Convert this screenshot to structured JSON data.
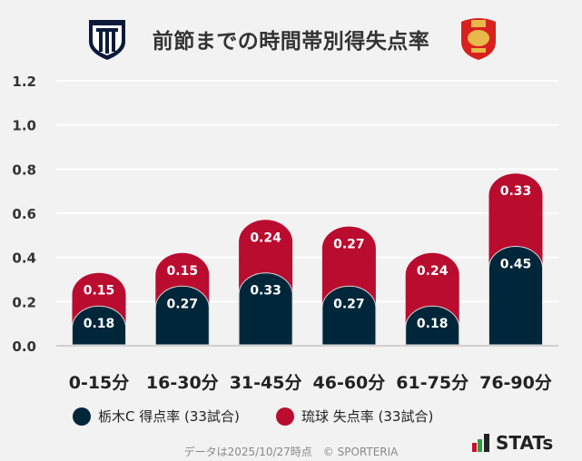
{
  "title": "前節までの時間帯別得失点率",
  "chart_data": {
    "type": "bar",
    "stacked": true,
    "title": "前節までの時間帯別得失点率",
    "categories": [
      "0-15分",
      "16-30分",
      "31-45分",
      "46-60分",
      "61-75分",
      "76-90分"
    ],
    "series": [
      {
        "name": "栃木C 得点率 (33試合)",
        "color": "#00263a",
        "values": [
          0.18,
          0.27,
          0.33,
          0.27,
          0.18,
          0.45
        ]
      },
      {
        "name": "琉球 失点率 (33試合)",
        "color": "#b90c2f",
        "values": [
          0.15,
          0.15,
          0.24,
          0.27,
          0.24,
          0.33
        ]
      }
    ],
    "yticks": [
      "0.0",
      "0.2",
      "0.4",
      "0.6",
      "0.8",
      "1.0",
      "1.2"
    ],
    "ylim": [
      0,
      1.2
    ],
    "grid": true,
    "legend_position": "bottom"
  },
  "footer": "データは2025/10/27時点　© SPORTERIA",
  "brand": "STATs",
  "logos": {
    "left": "栃木シティ crest",
    "right": "FC琉球 crest"
  }
}
